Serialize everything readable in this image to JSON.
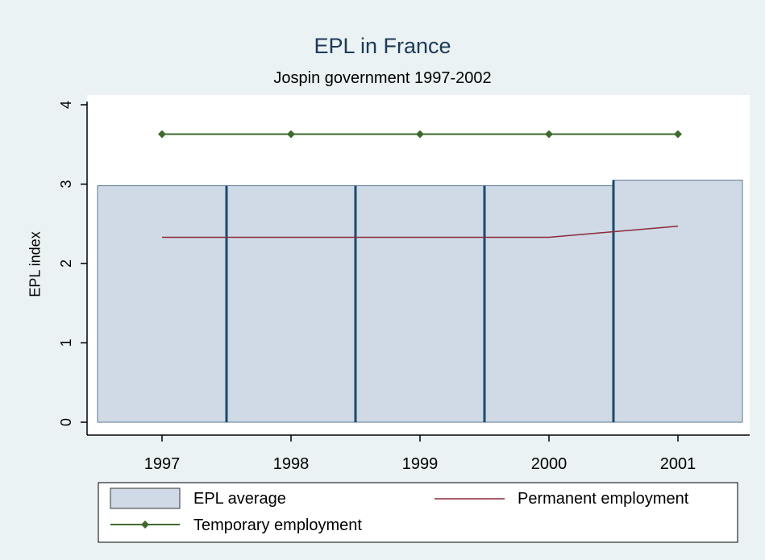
{
  "chart_data": {
    "type": "bar",
    "title": "EPL in France",
    "subtitle": "Jospin government 1997-2002",
    "xlabel": "",
    "ylabel": "EPL index",
    "categories": [
      "1997",
      "1998",
      "1999",
      "2000",
      "2001"
    ],
    "y_ticks": [
      "0",
      "1",
      "2",
      "3",
      "4"
    ],
    "ylim": [
      0,
      4
    ],
    "grid": false,
    "legend_position": "bottom",
    "series": [
      {
        "name": "EPL average",
        "kind": "bar",
        "values": [
          2.98,
          2.98,
          2.98,
          2.98,
          3.05
        ],
        "color": "#d0d9e6",
        "edge_color": "#1a4a6e"
      },
      {
        "name": "Permanent employment",
        "kind": "line",
        "values": [
          2.33,
          2.33,
          2.33,
          2.33,
          2.47
        ],
        "color": "#8b2a3a"
      },
      {
        "name": "Temporary employment",
        "kind": "line-markers",
        "values": [
          3.63,
          3.63,
          3.63,
          3.63,
          3.63
        ],
        "color": "#3f6a2e"
      }
    ]
  }
}
